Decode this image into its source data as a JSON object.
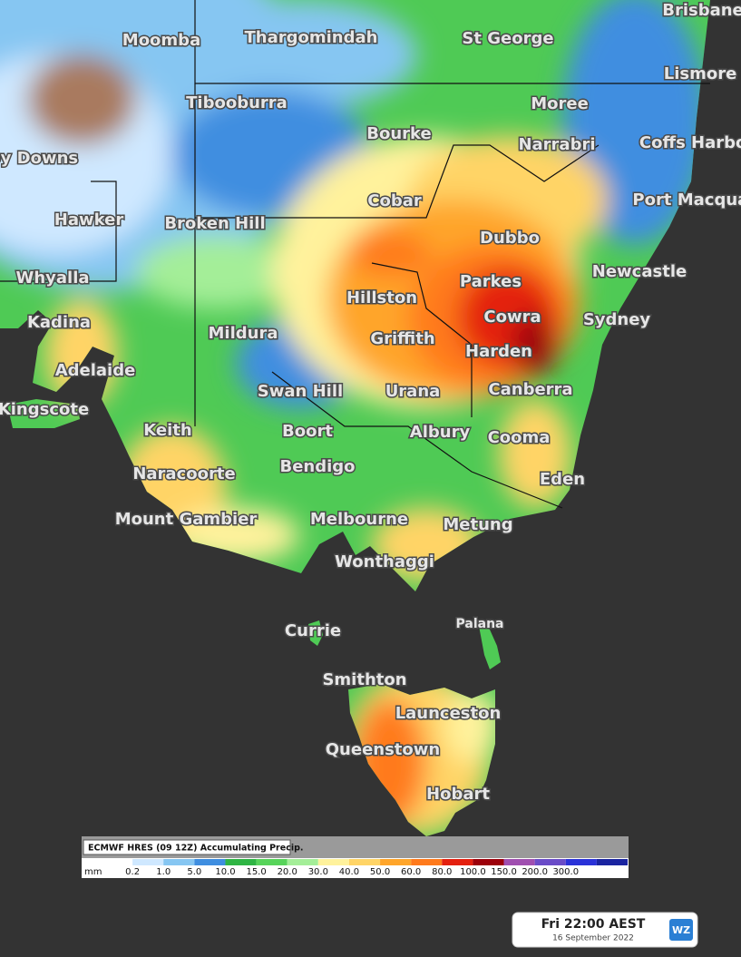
{
  "places": [
    "Brisbane",
    "Moomba",
    "Thargomindah",
    "St George",
    "Lismore",
    "Tibooburra",
    "Moree",
    "Bourke",
    "Narrabri",
    "Coffs Harbour",
    "Roxby Downs",
    "Cobar",
    "Port Macquarie",
    "Hawker",
    "Broken Hill",
    "Dubbo",
    "Newcastle",
    "Whyalla",
    "Parkes",
    "Hillston",
    "Cowra",
    "Sydney",
    "Kadina",
    "Mildura",
    "Griffith",
    "Harden",
    "Adelaide",
    "Swan Hill",
    "Urana",
    "Canberra",
    "Kingscote",
    "Keith",
    "Boort",
    "Albury",
    "Cooma",
    "Bendigo",
    "Naracoorte",
    "Eden",
    "Mount Gambier",
    "Melbourne",
    "Metung",
    "Wonthaggi",
    "Palana",
    "Currie",
    "Smithton",
    "Launceston",
    "Queenstown",
    "Hobart"
  ],
  "legend": {
    "title": "ECMWF HRES (09 12Z) Accumulating Precip.",
    "unit": "mm",
    "ticks": [
      "0.2",
      "1.0",
      "5.0",
      "10.0",
      "15.0",
      "20.0",
      "30.0",
      "40.0",
      "50.0",
      "60.0",
      "80.0",
      "100.0",
      "150.0",
      "200.0",
      "300.0"
    ],
    "colors": [
      "#ffffff",
      "#cfe8ff",
      "#86c6f2",
      "#3f8ee0",
      "#2fb544",
      "#57d45a",
      "#a4ee98",
      "#fff29c",
      "#ffd466",
      "#ffa52a",
      "#ff7a1c",
      "#e4200f",
      "#9c000a",
      "#a04fb0",
      "#6a4cc8",
      "#2a32d8",
      "#1a24a0"
    ]
  },
  "timestamp": {
    "time": "Fri 22:00 AEST",
    "date": "16 September 2022",
    "logo": "WZ"
  }
}
